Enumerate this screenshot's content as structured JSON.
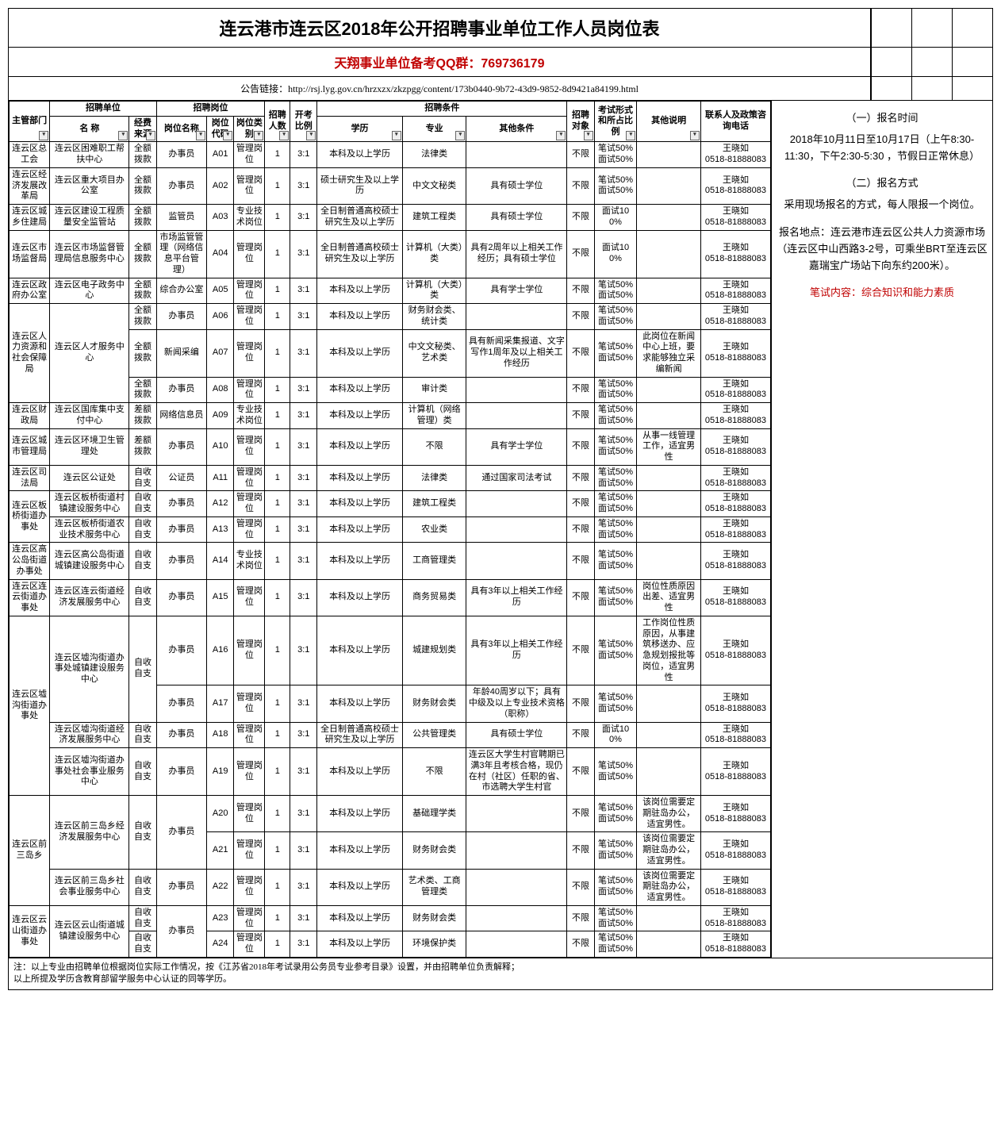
{
  "colors": {
    "red": "#c00000",
    "border": "#000000",
    "bg": "#ffffff",
    "filter_bg": "#eeeeee"
  },
  "title": "连云港市连云区2018年公开招聘事业单位工作人员岗位表",
  "subtitle": "天翔事业单位备考QQ群：769736179",
  "link_label": "公告链接：http://rsj.lyg.gov.cn/hrzxzx/zkzpgg/content/173b0440-9b72-43d9-9852-8d9421a84199.html",
  "headers": {
    "dept": "主管部门",
    "unit_group": "招聘单位",
    "unit_name": "名  称",
    "unit_fund": "经费来源",
    "position_group": "招聘岗位",
    "position_name": "岗位名称",
    "position_code": "岗位代码",
    "position_type": "岗位类别",
    "num": "招聘人数",
    "ratio": "开考比例",
    "cond_group": "招聘条件",
    "edu": "学历",
    "major": "专业",
    "other_cond": "其他条件",
    "target": "招聘对象",
    "exam": "考试形式和所占比例",
    "remark": "其他说明",
    "contact": "联系人及政策咨询电话"
  },
  "side": {
    "h1": "（一）报名时间",
    "t1": "2018年10月11日至10月17日（上午8:30-11:30，下午2:30-5:30  ，节假日正常休息）",
    "h2": "（二）报名方式",
    "t2": "采用现场报名的方式，每人限报一个岗位。",
    "t3": "报名地点：连云港市连云区公共人力资源市场（连云区中山西路3-2号，可乘坐BRT至连云区嘉瑞宝广场站下向东约200米）。",
    "t4": "笔试内容：综合知识和能力素质"
  },
  "footer": "注：以上专业由招聘单位根据岗位实际工作情况，按《江苏省2018年考试录用公务员专业参考目录》设置，并由招聘单位负责解释；\n以上所提及学历含教育部留学服务中心认证的同等学历。",
  "contact_name": "王晓如",
  "contact_phone": "0518-81888083",
  "groups": [
    {
      "dept": "连云区总工会",
      "rows": [
        {
          "unit": "连云区困难职工帮扶中心",
          "fund": "全额拨款",
          "pname": "办事员",
          "code": "A01",
          "ptype": "管理岗位",
          "num": "1",
          "ratio": "3:1",
          "edu": "本科及以上学历",
          "major": "法律类",
          "other": "",
          "target": "不限",
          "exam": "笔试50%面试50%",
          "remark": ""
        }
      ]
    },
    {
      "dept": "连云区经济发展改革局",
      "rows": [
        {
          "unit": "连云区重大项目办公室",
          "fund": "全额拨款",
          "pname": "办事员",
          "code": "A02",
          "ptype": "管理岗位",
          "num": "1",
          "ratio": "3:1",
          "edu": "硕士研究生及以上学历",
          "major": "中文文秘类",
          "other": "具有硕士学位",
          "target": "不限",
          "exam": "笔试50%面试50%",
          "remark": ""
        }
      ]
    },
    {
      "dept": "连云区城乡住建局",
      "rows": [
        {
          "unit": "连云区建设工程质量安全监管站",
          "fund": "全额拨款",
          "pname": "监管员",
          "code": "A03",
          "ptype": "专业技术岗位",
          "num": "1",
          "ratio": "3:1",
          "edu": "全日制普通高校硕士研究生及以上学历",
          "major": "建筑工程类",
          "other": "具有硕士学位",
          "target": "不限",
          "exam": "面试100%",
          "remark": ""
        }
      ]
    },
    {
      "dept": "连云区市场监督局",
      "rows": [
        {
          "unit": "连云区市场监督管理局信息服务中心",
          "fund": "全额拨款",
          "pname": "市场监管管理（网络信息平台管理）",
          "code": "A04",
          "ptype": "管理岗位",
          "num": "1",
          "ratio": "3:1",
          "edu": "全日制普通高校硕士研究生及以上学历",
          "major": "计算机（大类）类",
          "other": "具有2周年以上相关工作经历；具有硕士学位",
          "target": "不限",
          "exam": "面试100%",
          "remark": ""
        }
      ]
    },
    {
      "dept": "连云区政府办公室",
      "rows": [
        {
          "unit": "连云区电子政务中心",
          "fund": "全额拨款",
          "pname": "综合办公室",
          "code": "A05",
          "ptype": "管理岗位",
          "num": "1",
          "ratio": "3:1",
          "edu": "本科及以上学历",
          "major": "计算机（大类）类",
          "other": "具有学士学位",
          "target": "不限",
          "exam": "笔试50%面试50%",
          "remark": ""
        }
      ]
    },
    {
      "dept": "连云区人力资源和社会保障局",
      "rows": [
        {
          "unit": "连云区人才服务中心",
          "unit_rowspan": 3,
          "fund": "全额拨款",
          "pname": "办事员",
          "code": "A06",
          "ptype": "管理岗位",
          "num": "1",
          "ratio": "3:1",
          "edu": "本科及以上学历",
          "major": "财务财会类、统计类",
          "other": "",
          "target": "不限",
          "exam": "笔试50%面试50%",
          "remark": ""
        },
        {
          "fund": "全额拨款",
          "pname": "新闻采编",
          "code": "A07",
          "ptype": "管理岗位",
          "num": "1",
          "ratio": "3:1",
          "edu": "本科及以上学历",
          "major": "中文文秘类、艺术类",
          "other": "具有新闻采集报道、文字写作1周年及以上相关工作经历",
          "target": "不限",
          "exam": "笔试50%面试50%",
          "remark": "此岗位在新闻中心上班，要求能够独立采编新闻"
        },
        {
          "fund": "全额拨款",
          "pname": "办事员",
          "code": "A08",
          "ptype": "管理岗位",
          "num": "1",
          "ratio": "3:1",
          "edu": "本科及以上学历",
          "major": "审计类",
          "other": "",
          "target": "不限",
          "exam": "笔试50%面试50%",
          "remark": ""
        }
      ]
    },
    {
      "dept": "连云区财政局",
      "rows": [
        {
          "unit": "连云区国库集中支付中心",
          "fund": "差额拨款",
          "pname": "网络信息员",
          "code": "A09",
          "ptype": "专业技术岗位",
          "num": "1",
          "ratio": "3:1",
          "edu": "本科及以上学历",
          "major": "计算机（网络管理）类",
          "other": "",
          "target": "不限",
          "exam": "笔试50%面试50%",
          "remark": ""
        }
      ]
    },
    {
      "dept": "连云区城市管理局",
      "rows": [
        {
          "unit": "连云区环境卫生管理处",
          "fund": "差额拨款",
          "pname": "办事员",
          "code": "A10",
          "ptype": "管理岗位",
          "num": "1",
          "ratio": "3:1",
          "edu": "本科及以上学历",
          "major": "不限",
          "other": "具有学士学位",
          "target": "不限",
          "exam": "笔试50%面试50%",
          "remark": "从事一线管理工作，适宜男性"
        }
      ]
    },
    {
      "dept": "连云区司法局",
      "rows": [
        {
          "unit": "连云区公证处",
          "fund": "自收自支",
          "pname": "公证员",
          "code": "A11",
          "ptype": "管理岗位",
          "num": "1",
          "ratio": "3:1",
          "edu": "本科及以上学历",
          "major": "法律类",
          "other": "通过国家司法考试",
          "target": "不限",
          "exam": "笔试50%面试50%",
          "remark": ""
        }
      ]
    },
    {
      "dept": "连云区板桥街道办事处",
      "rows": [
        {
          "unit": "连云区板桥街道村镇建设服务中心",
          "fund": "自收自支",
          "pname": "办事员",
          "code": "A12",
          "ptype": "管理岗位",
          "num": "1",
          "ratio": "3:1",
          "edu": "本科及以上学历",
          "major": "建筑工程类",
          "other": "",
          "target": "不限",
          "exam": "笔试50%面试50%",
          "remark": ""
        },
        {
          "unit": "连云区板桥街道农业技术服务中心",
          "fund": "自收自支",
          "pname": "办事员",
          "code": "A13",
          "ptype": "管理岗位",
          "num": "1",
          "ratio": "3:1",
          "edu": "本科及以上学历",
          "major": "农业类",
          "other": "",
          "target": "不限",
          "exam": "笔试50%面试50%",
          "remark": ""
        }
      ]
    },
    {
      "dept": "连云区高公岛街道办事处",
      "rows": [
        {
          "unit": "连云区高公岛街道城镇建设服务中心",
          "fund": "自收自支",
          "pname": "办事员",
          "code": "A14",
          "ptype": "专业技术岗位",
          "num": "1",
          "ratio": "3:1",
          "edu": "本科及以上学历",
          "major": "工商管理类",
          "other": "",
          "target": "不限",
          "exam": "笔试50%面试50%",
          "remark": ""
        }
      ]
    },
    {
      "dept": "连云区连云街道办事处",
      "rows": [
        {
          "unit": "连云区连云街道经济发展服务中心",
          "fund": "自收自支",
          "pname": "办事员",
          "code": "A15",
          "ptype": "管理岗位",
          "num": "1",
          "ratio": "3:1",
          "edu": "本科及以上学历",
          "major": "商务贸易类",
          "other": "具有3年以上相关工作经历",
          "target": "不限",
          "exam": "笔试50%面试50%",
          "remark": "岗位性质原因出差、适宜男性"
        }
      ]
    },
    {
      "dept": "连云区墟沟街道办事处",
      "rows": [
        {
          "unit": "连云区墟沟街道办事处城镇建设服务中心",
          "unit_rowspan": 2,
          "fund": "自收自支",
          "fund_rowspan": 2,
          "pname": "办事员",
          "code": "A16",
          "ptype": "管理岗位",
          "num": "1",
          "ratio": "3:1",
          "edu": "本科及以上学历",
          "major": "城建规划类",
          "other": "具有3年以上相关工作经历",
          "target": "不限",
          "exam": "笔试50%面试50%",
          "remark": "工作岗位性质原因，从事建筑移送办、应急规划报批等岗位，适宜男性"
        },
        {
          "pname": "办事员",
          "code": "A17",
          "ptype": "管理岗位",
          "num": "1",
          "ratio": "3:1",
          "edu": "本科及以上学历",
          "major": "财务财会类",
          "other": "年龄40周岁以下；具有中级及以上专业技术资格（职称）",
          "target": "不限",
          "exam": "笔试50%面试50%",
          "remark": ""
        },
        {
          "unit": "连云区墟沟街道经济发展服务中心",
          "fund": "自收自支",
          "pname": "办事员",
          "code": "A18",
          "ptype": "管理岗位",
          "num": "1",
          "ratio": "3:1",
          "edu": "全日制普通高校硕士研究生及以上学历",
          "major": "公共管理类",
          "other": "具有硕士学位",
          "target": "不限",
          "exam": "面试100%",
          "remark": ""
        },
        {
          "unit": "连云区墟沟街道办事处社会事业服务中心",
          "fund": "自收自支",
          "pname": "办事员",
          "code": "A19",
          "ptype": "管理岗位",
          "num": "1",
          "ratio": "3:1",
          "edu": "本科及以上学历",
          "major": "不限",
          "other": "连云区大学生村官聘期已满3年且考核合格，现仍在村（社区）任职的省、市选聘大学生村官",
          "target": "不限",
          "exam": "笔试50%面试50%",
          "remark": ""
        }
      ]
    },
    {
      "dept": "连云区前三岛乡",
      "rows": [
        {
          "unit": "连云区前三岛乡经济发展服务中心",
          "unit_rowspan": 2,
          "fund": "自收自支",
          "fund_rowspan": 2,
          "pname": "办事员",
          "pname_rowspan": 2,
          "code": "A20",
          "ptype": "管理岗位",
          "num": "1",
          "ratio": "3:1",
          "edu": "本科及以上学历",
          "major": "基础理学类",
          "other": "",
          "target": "不限",
          "exam": "笔试50%面试50%",
          "remark": "该岗位需要定期驻岛办公，适宜男性。"
        },
        {
          "code": "A21",
          "ptype": "管理岗位",
          "num": "1",
          "ratio": "3:1",
          "edu": "本科及以上学历",
          "major": "财务财会类",
          "other": "",
          "target": "不限",
          "exam": "笔试50%面试50%",
          "remark": "该岗位需要定期驻岛办公，适宜男性。"
        },
        {
          "unit": "连云区前三岛乡社会事业服务中心",
          "fund": "自收自支",
          "pname": "办事员",
          "code": "A22",
          "ptype": "管理岗位",
          "num": "1",
          "ratio": "3:1",
          "edu": "本科及以上学历",
          "major": "艺术类、工商管理类",
          "other": "",
          "target": "不限",
          "exam": "笔试50%面试50%",
          "remark": "该岗位需要定期驻岛办公，适宜男性。"
        }
      ]
    },
    {
      "dept": "连云区云山街道办事处",
      "rows": [
        {
          "unit": "连云区云山街道城镇建设服务中心",
          "unit_rowspan": 2,
          "fund": "自收自支",
          "pname": "办事员",
          "pname_rowspan": 2,
          "code": "A23",
          "ptype": "管理岗位",
          "num": "1",
          "ratio": "3:1",
          "edu": "本科及以上学历",
          "major": "财务财会类",
          "other": "",
          "target": "不限",
          "exam": "笔试50%面试50%",
          "remark": ""
        },
        {
          "fund": "自收自支",
          "code": "A24",
          "ptype": "管理岗位",
          "num": "1",
          "ratio": "3:1",
          "edu": "本科及以上学历",
          "major": "环境保护类",
          "other": "",
          "target": "不限",
          "exam": "笔试50%面试50%",
          "remark": ""
        }
      ]
    }
  ]
}
